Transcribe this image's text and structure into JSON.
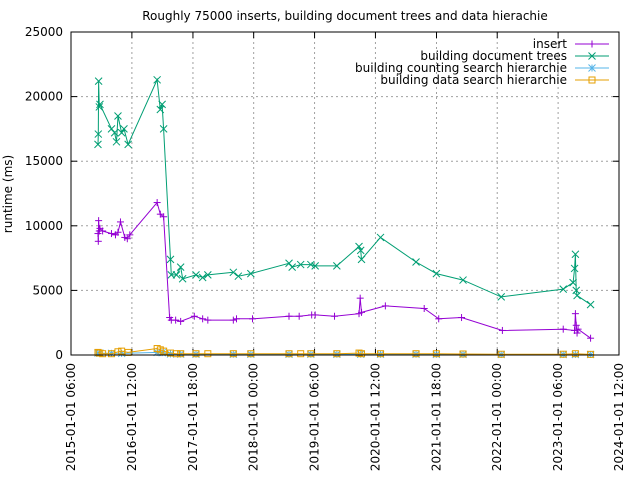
{
  "chart_data": {
    "type": "line",
    "title": "Roughly 75000 inserts, building document trees and data hierachie",
    "xlabel": "",
    "ylabel": "runtime (ms)",
    "ylim": [
      0,
      25000
    ],
    "yticks": [
      0,
      5000,
      10000,
      15000,
      20000,
      25000
    ],
    "ytick_labels": [
      "0",
      "5000",
      "10000",
      "15000",
      "20000",
      "25000"
    ],
    "xlim": [
      "2015-01-01 06:00",
      "2024-01-01 12:00"
    ],
    "xticks": [
      "2015-01-01 06:00",
      "2016-01-01 12:00",
      "2017-01-01 18:00",
      "2018-01-01 00:00",
      "2019-01-01 06:00",
      "2020-01-01 12:00",
      "2021-01-01 18:00",
      "2022-01-01 00:00",
      "2023-01-01 06:00",
      "2024-01-01 12:00"
    ],
    "grid": true,
    "legend_position": "top-right",
    "series": [
      {
        "name": "insert",
        "color": "#9400d3",
        "marker": "plus",
        "points": [
          [
            "2015-06-12",
            9400
          ],
          [
            "2015-06-14",
            8800
          ],
          [
            "2015-06-16",
            10400
          ],
          [
            "2015-06-20",
            9600
          ],
          [
            "2015-06-24",
            9800
          ],
          [
            "2015-07-10",
            9600
          ],
          [
            "2015-09-01",
            9400
          ],
          [
            "2015-09-25",
            9300
          ],
          [
            "2015-10-10",
            9500
          ],
          [
            "2015-10-25",
            10300
          ],
          [
            "2015-11-20",
            9100
          ],
          [
            "2015-12-05",
            9000
          ],
          [
            "2015-12-20",
            9300
          ],
          [
            "2016-06-01",
            11800
          ],
          [
            "2016-06-20",
            10900
          ],
          [
            "2016-07-10",
            10700
          ],
          [
            "2016-08-15",
            2900
          ],
          [
            "2016-08-25",
            2700
          ],
          [
            "2016-09-20",
            2700
          ],
          [
            "2016-10-20",
            2600
          ],
          [
            "2017-01-10",
            3000
          ],
          [
            "2017-03-01",
            2800
          ],
          [
            "2017-04-01",
            2700
          ],
          [
            "2017-09-01",
            2700
          ],
          [
            "2017-09-20",
            2800
          ],
          [
            "2017-12-25",
            2800
          ],
          [
            "2018-08-01",
            3000
          ],
          [
            "2018-10-01",
            3000
          ],
          [
            "2018-12-15",
            3100
          ],
          [
            "2019-01-05",
            3100
          ],
          [
            "2019-05-01",
            3000
          ],
          [
            "2019-09-25",
            3200
          ],
          [
            "2019-10-02",
            4400
          ],
          [
            "2019-10-10",
            3300
          ],
          [
            "2020-03-01",
            3800
          ],
          [
            "2020-10-20",
            3600
          ],
          [
            "2021-01-15",
            2800
          ],
          [
            "2021-06-01",
            2900
          ],
          [
            "2022-02-01",
            1900
          ],
          [
            "2023-02-01",
            2000
          ],
          [
            "2023-04-10",
            1900
          ],
          [
            "2023-04-15",
            3200
          ],
          [
            "2023-04-20",
            2300
          ],
          [
            "2023-04-25",
            1700
          ],
          [
            "2023-05-01",
            2000
          ],
          [
            "2023-07-15",
            1300
          ]
        ]
      },
      {
        "name": "building document trees",
        "color": "#009e73",
        "marker": "cross",
        "points": [
          [
            "2015-06-12",
            16300
          ],
          [
            "2015-06-14",
            17100
          ],
          [
            "2015-06-16",
            21200
          ],
          [
            "2015-06-20",
            19200
          ],
          [
            "2015-06-24",
            19400
          ],
          [
            "2015-09-01",
            17500
          ],
          [
            "2015-09-20",
            17200
          ],
          [
            "2015-10-01",
            16500
          ],
          [
            "2015-10-10",
            18500
          ],
          [
            "2015-11-01",
            17200
          ],
          [
            "2015-11-15",
            17500
          ],
          [
            "2015-12-10",
            16300
          ],
          [
            "2016-06-01",
            21300
          ],
          [
            "2016-06-20",
            19000
          ],
          [
            "2016-07-01",
            19400
          ],
          [
            "2016-07-10",
            17500
          ],
          [
            "2016-08-20",
            7400
          ],
          [
            "2016-08-25",
            6200
          ],
          [
            "2016-09-25",
            6200
          ],
          [
            "2016-10-20",
            6800
          ],
          [
            "2016-11-01",
            5900
          ],
          [
            "2017-01-20",
            6200
          ],
          [
            "2017-03-01",
            6000
          ],
          [
            "2017-04-01",
            6200
          ],
          [
            "2017-09-01",
            6400
          ],
          [
            "2017-10-01",
            6100
          ],
          [
            "2017-12-15",
            6300
          ],
          [
            "2018-08-01",
            7100
          ],
          [
            "2018-08-20",
            6800
          ],
          [
            "2018-10-10",
            7000
          ],
          [
            "2018-12-10",
            7000
          ],
          [
            "2019-01-05",
            6900
          ],
          [
            "2019-05-15",
            6900
          ],
          [
            "2019-09-25",
            8400
          ],
          [
            "2019-10-05",
            8100
          ],
          [
            "2019-10-10",
            7400
          ],
          [
            "2020-02-01",
            9100
          ],
          [
            "2020-09-01",
            7200
          ],
          [
            "2021-01-01",
            6300
          ],
          [
            "2021-06-10",
            5800
          ],
          [
            "2022-01-25",
            4500
          ],
          [
            "2023-02-01",
            5100
          ],
          [
            "2023-04-01",
            5600
          ],
          [
            "2023-04-10",
            6700
          ],
          [
            "2023-04-15",
            7800
          ],
          [
            "2023-04-20",
            5000
          ],
          [
            "2023-04-25",
            4600
          ],
          [
            "2023-07-15",
            3900
          ]
        ]
      },
      {
        "name": "building counting search hierarchie",
        "color": "#56b4e9",
        "marker": "star",
        "points": [
          [
            "2015-06-12",
            150
          ],
          [
            "2015-06-24",
            140
          ],
          [
            "2015-09-01",
            130
          ],
          [
            "2015-11-01",
            120
          ],
          [
            "2016-06-01",
            200
          ],
          [
            "2016-07-01",
            180
          ],
          [
            "2016-08-20",
            80
          ],
          [
            "2016-10-20",
            70
          ],
          [
            "2017-01-20",
            60
          ],
          [
            "2017-09-01",
            60
          ],
          [
            "2017-12-15",
            60
          ],
          [
            "2018-08-01",
            60
          ],
          [
            "2018-12-10",
            60
          ],
          [
            "2019-05-15",
            60
          ],
          [
            "2019-10-05",
            60
          ],
          [
            "2020-02-01",
            60
          ],
          [
            "2020-09-01",
            60
          ],
          [
            "2021-01-01",
            50
          ],
          [
            "2021-06-10",
            50
          ],
          [
            "2022-01-25",
            40
          ],
          [
            "2023-02-01",
            40
          ],
          [
            "2023-04-15",
            40
          ],
          [
            "2023-07-15",
            40
          ]
        ]
      },
      {
        "name": "building data search hierarchie",
        "color": "#e69f00",
        "marker": "square",
        "points": [
          [
            "2015-06-12",
            200
          ],
          [
            "2015-06-20",
            150
          ],
          [
            "2015-07-10",
            100
          ],
          [
            "2015-09-01",
            100
          ],
          [
            "2015-10-10",
            250
          ],
          [
            "2015-11-01",
            300
          ],
          [
            "2015-12-10",
            200
          ],
          [
            "2016-06-01",
            500
          ],
          [
            "2016-06-20",
            400
          ],
          [
            "2016-07-10",
            300
          ],
          [
            "2016-08-20",
            150
          ],
          [
            "2016-09-25",
            100
          ],
          [
            "2016-10-20",
            100
          ],
          [
            "2017-01-20",
            100
          ],
          [
            "2017-04-01",
            100
          ],
          [
            "2017-09-01",
            100
          ],
          [
            "2017-12-15",
            100
          ],
          [
            "2018-08-01",
            100
          ],
          [
            "2018-10-10",
            100
          ],
          [
            "2018-12-10",
            100
          ],
          [
            "2019-05-15",
            100
          ],
          [
            "2019-09-25",
            150
          ],
          [
            "2019-10-10",
            100
          ],
          [
            "2020-02-01",
            100
          ],
          [
            "2020-09-01",
            100
          ],
          [
            "2021-01-01",
            100
          ],
          [
            "2021-06-10",
            80
          ],
          [
            "2022-01-25",
            60
          ],
          [
            "2023-02-01",
            60
          ],
          [
            "2023-04-15",
            100
          ],
          [
            "2023-07-15",
            50
          ]
        ]
      }
    ]
  }
}
